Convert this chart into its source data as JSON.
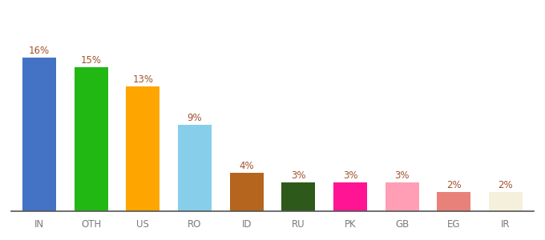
{
  "categories": [
    "IN",
    "OTH",
    "US",
    "RO",
    "ID",
    "RU",
    "PK",
    "GB",
    "EG",
    "IR"
  ],
  "values": [
    16,
    15,
    13,
    9,
    4,
    3,
    3,
    3,
    2,
    2
  ],
  "bar_colors": [
    "#4472c4",
    "#22b814",
    "#ffa500",
    "#87ceeb",
    "#b5651d",
    "#2d5a1b",
    "#ff1493",
    "#ff9eb5",
    "#e8817a",
    "#f5f0dc"
  ],
  "label_color": "#a0522d",
  "label_fontsize": 8.5,
  "tick_fontsize": 8.5,
  "tick_color": "#7b7b7b",
  "ylim": [
    0,
    19
  ],
  "bar_width": 0.65,
  "background_color": "#ffffff",
  "spine_color": "#555555"
}
